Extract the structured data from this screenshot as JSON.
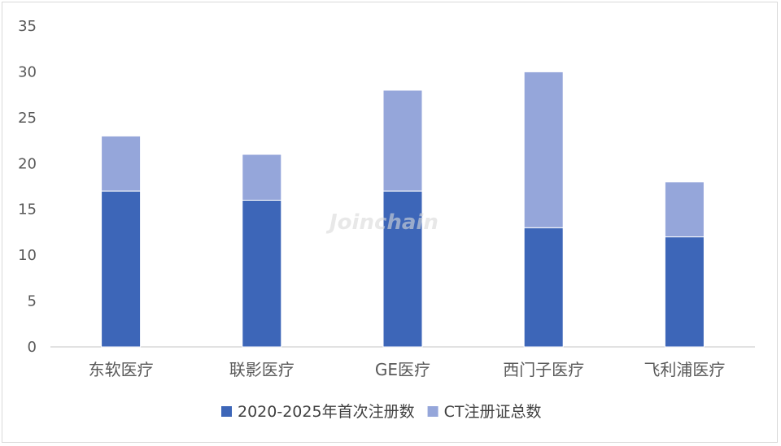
{
  "chart_data": {
    "type": "bar",
    "stacked": true,
    "categories": [
      "东软医疗",
      "联影医疗",
      "GE医疗",
      "西门子医疗",
      "飞利浦医疗"
    ],
    "series": [
      {
        "name": "2020-2025年首次注册数",
        "values": [
          17,
          16,
          17,
          13,
          12
        ],
        "color": "#3d66b8"
      },
      {
        "name": "CT注册证总数",
        "values": [
          6,
          5,
          11,
          17,
          6
        ],
        "color": "#95a6da"
      }
    ],
    "totals": [
      23,
      21,
      28,
      30,
      18
    ],
    "yticks": [
      "0",
      "5",
      "10",
      "15",
      "20",
      "25",
      "30",
      "35"
    ],
    "ylim": [
      0,
      35
    ],
    "grid": false,
    "legend_position": "bottom",
    "watermark": "Joinchain"
  }
}
